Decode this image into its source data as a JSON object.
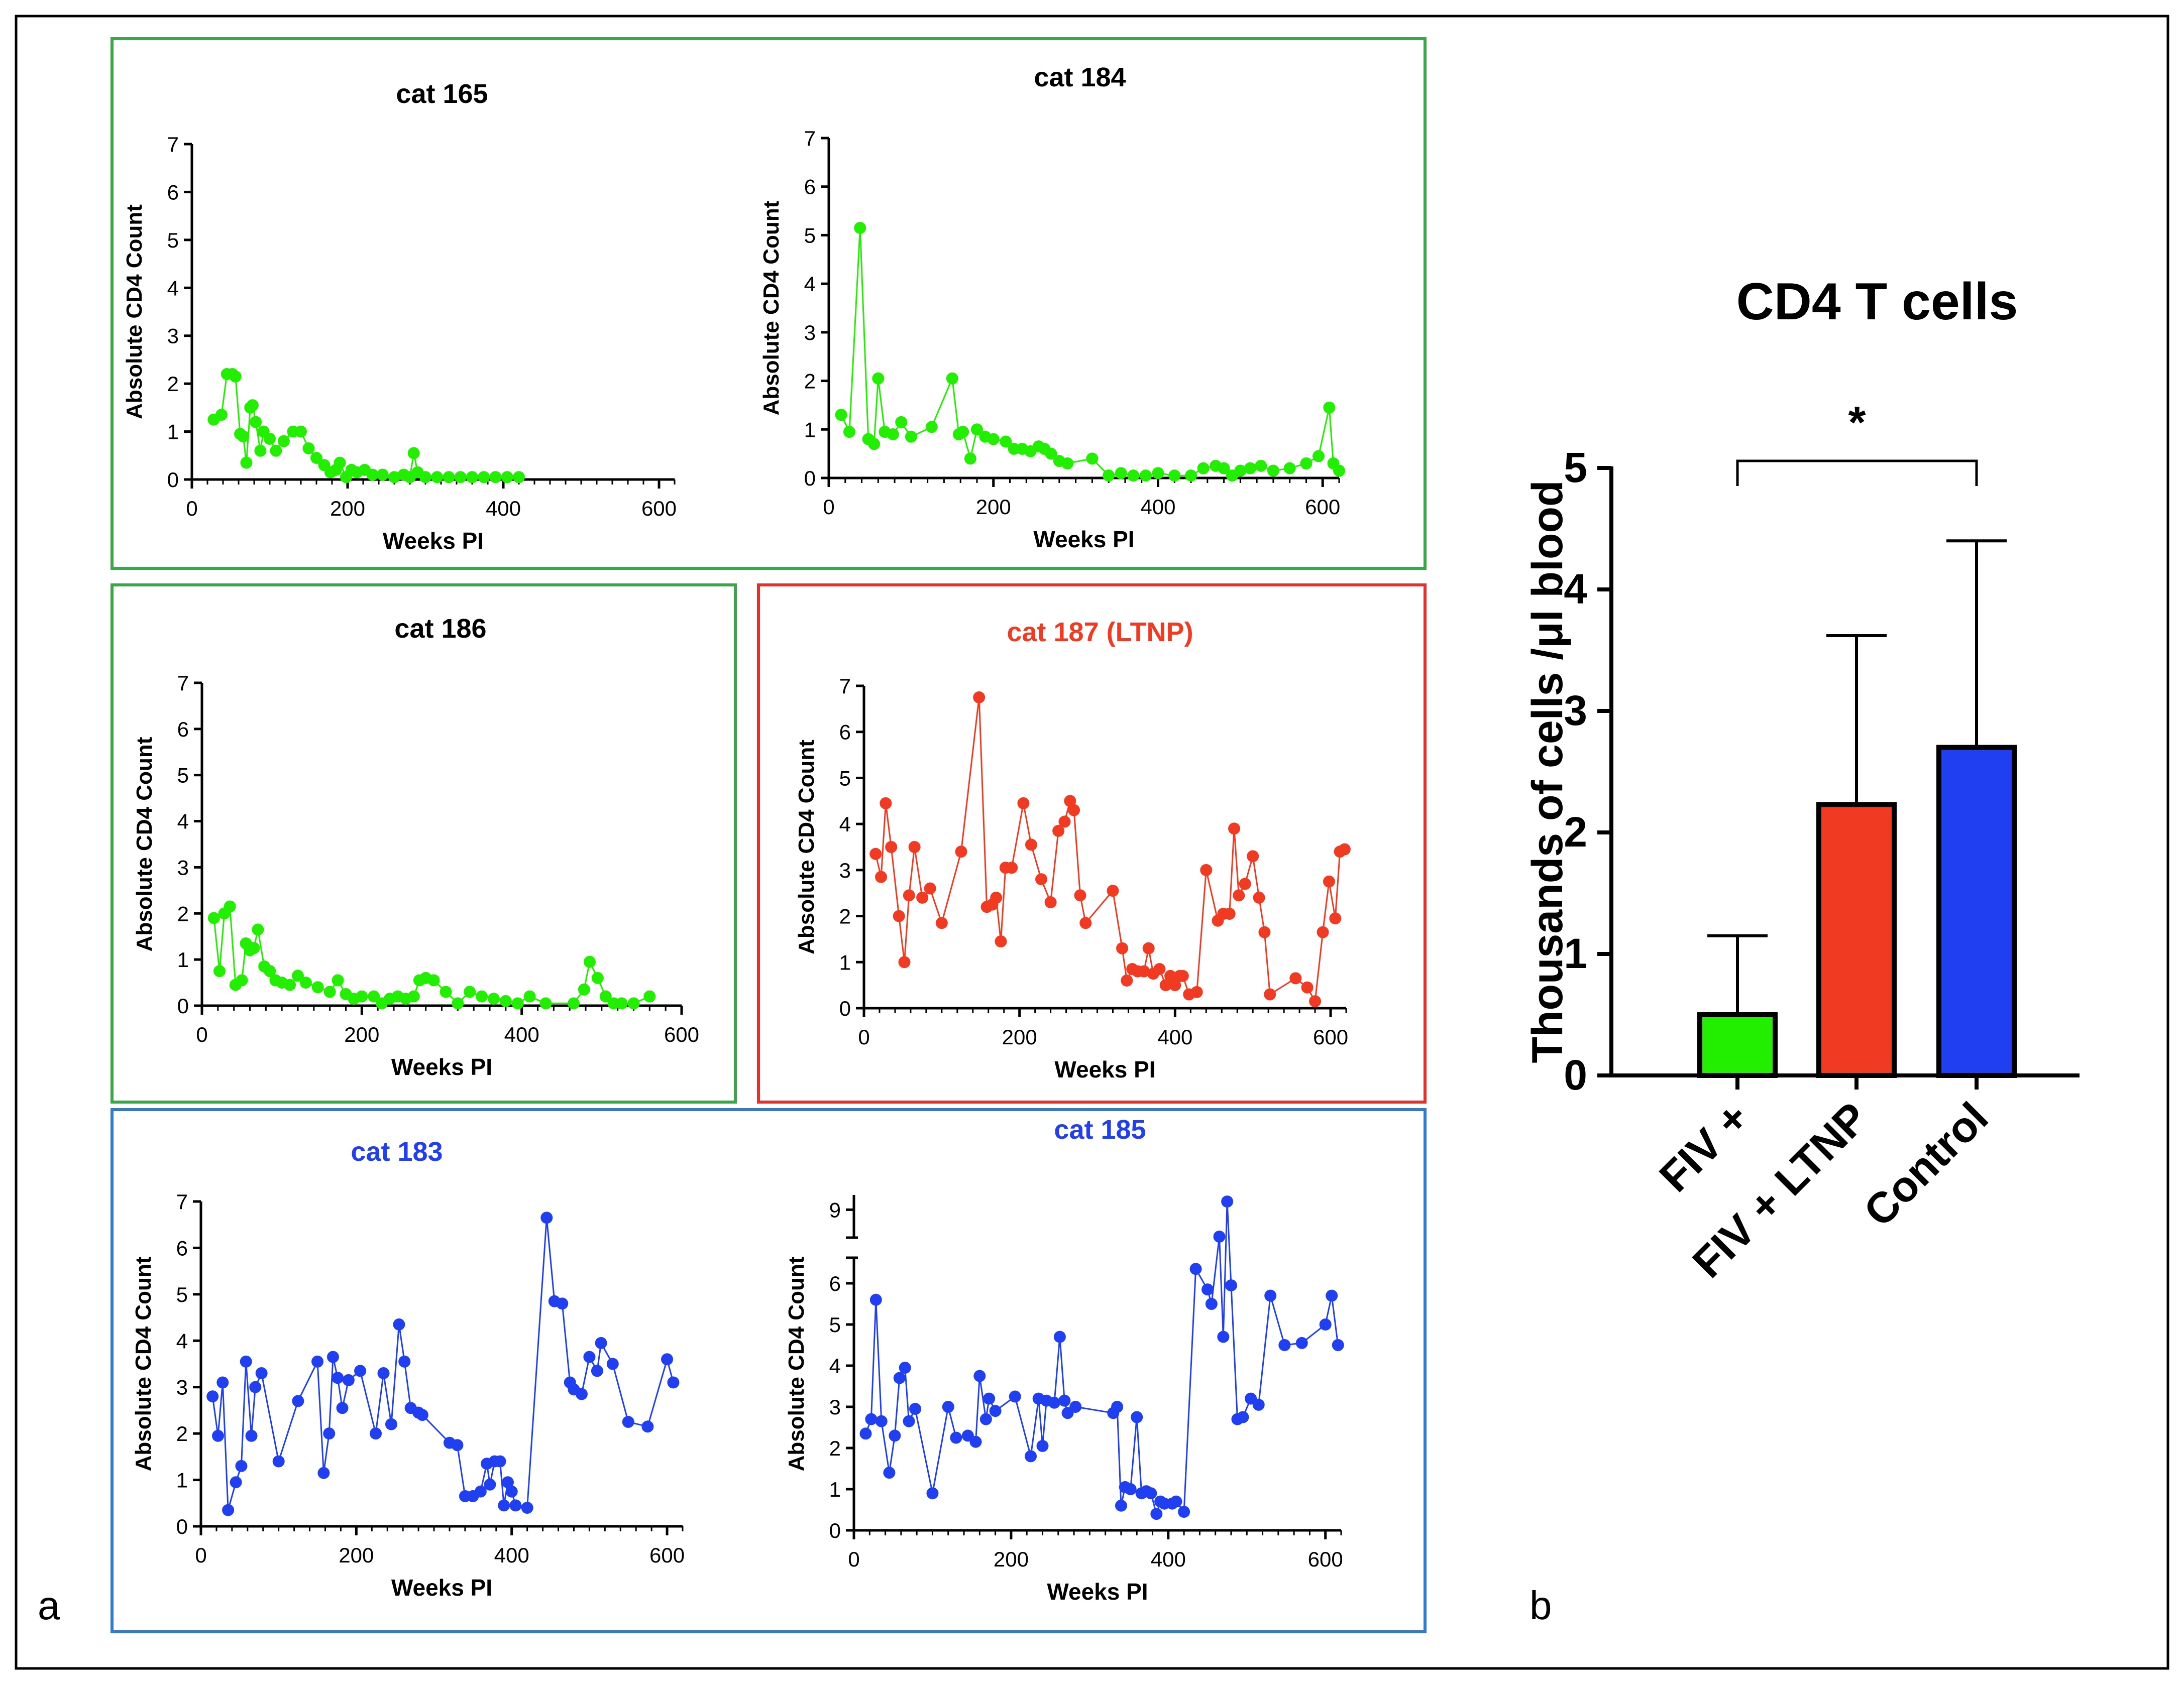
{
  "figure": {
    "panel_a_label": "a",
    "panel_b_label": "b"
  },
  "colors": {
    "fiv_green": "#22ee00",
    "ltnp_red": "#f03a22",
    "control_blue": "#1f3ff0",
    "green_frame": "#3aa64a",
    "red_frame": "#e0332e",
    "blue_frame": "#2f7ccc",
    "axis": "#000000"
  },
  "chart_data": [
    {
      "id": "cat165",
      "type": "line",
      "title": "cat 165",
      "xlabel": "Weeks PI",
      "ylabel": "Absolute CD4 Count",
      "xlim": [
        0,
        620
      ],
      "ylim": [
        0,
        7
      ],
      "xticks": [
        0,
        200,
        400,
        600
      ],
      "yticks": [
        0,
        1,
        2,
        3,
        4,
        5,
        6,
        7
      ],
      "series": [
        {
          "name": "cat 165",
          "color_key": "fiv_green",
          "x": [
            28,
            38,
            45,
            52,
            56,
            62,
            66,
            70,
            75,
            78,
            82,
            88,
            92,
            100,
            108,
            118,
            130,
            140,
            150,
            160,
            170,
            178,
            185,
            190,
            198,
            205,
            212,
            222,
            232,
            245,
            260,
            272,
            280,
            285,
            290,
            300,
            315,
            330,
            345,
            360,
            375,
            390,
            405,
            420
          ],
          "y": [
            1.25,
            1.35,
            2.2,
            2.2,
            2.15,
            0.95,
            0.9,
            0.35,
            1.5,
            1.55,
            1.2,
            0.6,
            1.0,
            0.85,
            0.6,
            0.8,
            1.0,
            1.0,
            0.65,
            0.45,
            0.3,
            0.15,
            0.2,
            0.35,
            0.05,
            0.2,
            0.15,
            0.2,
            0.1,
            0.1,
            0.05,
            0.1,
            0.05,
            0.55,
            0.15,
            0.05,
            0.05,
            0.05,
            0.05,
            0.05,
            0.05,
            0.05,
            0.05,
            0.05
          ]
        }
      ]
    },
    {
      "id": "cat184",
      "type": "line",
      "title": "cat 184",
      "xlabel": "Weeks PI",
      "ylabel": "Absolute CD4 Count",
      "xlim": [
        0,
        620
      ],
      "ylim": [
        0,
        7
      ],
      "xticks": [
        0,
        200,
        400,
        600
      ],
      "yticks": [
        0,
        1,
        2,
        3,
        4,
        5,
        6,
        7
      ],
      "series": [
        {
          "name": "cat 184",
          "color_key": "fiv_green",
          "x": [
            15,
            25,
            38,
            48,
            55,
            60,
            68,
            78,
            88,
            100,
            125,
            150,
            158,
            163,
            172,
            180,
            190,
            200,
            215,
            225,
            235,
            245,
            255,
            262,
            270,
            280,
            290,
            320,
            340,
            355,
            370,
            385,
            400,
            420,
            440,
            455,
            470,
            480,
            490,
            500,
            512,
            525,
            540,
            560,
            580,
            595,
            608,
            613,
            620
          ],
          "y": [
            1.3,
            0.95,
            5.15,
            0.8,
            0.7,
            2.05,
            0.95,
            0.9,
            1.15,
            0.85,
            1.05,
            2.05,
            0.9,
            0.95,
            0.4,
            1.0,
            0.85,
            0.8,
            0.75,
            0.6,
            0.6,
            0.55,
            0.65,
            0.6,
            0.5,
            0.35,
            0.3,
            0.4,
            0.05,
            0.1,
            0.05,
            0.05,
            0.1,
            0.05,
            0.05,
            0.2,
            0.25,
            0.2,
            0.05,
            0.15,
            0.2,
            0.25,
            0.15,
            0.2,
            0.3,
            0.45,
            1.45,
            0.3,
            0.15
          ]
        }
      ]
    },
    {
      "id": "cat186",
      "type": "line",
      "title": "cat 186",
      "xlabel": "Weeks PI",
      "ylabel": "Absolute CD4 Count",
      "xlim": [
        0,
        600
      ],
      "ylim": [
        0,
        7
      ],
      "xticks": [
        0,
        200,
        400,
        600
      ],
      "yticks": [
        0,
        1,
        2,
        3,
        4,
        5,
        6,
        7
      ],
      "series": [
        {
          "name": "cat 186",
          "color_key": "fiv_green",
          "x": [
            15,
            22,
            28,
            35,
            42,
            50,
            55,
            60,
            65,
            70,
            78,
            85,
            92,
            100,
            110,
            120,
            130,
            145,
            160,
            170,
            180,
            190,
            200,
            215,
            225,
            235,
            245,
            255,
            265,
            272,
            280,
            290,
            305,
            320,
            335,
            350,
            365,
            380,
            395,
            410,
            430,
            465,
            478,
            485,
            495,
            505,
            515,
            525,
            540,
            560
          ],
          "y": [
            1.9,
            0.75,
            2.0,
            2.15,
            0.45,
            0.55,
            1.35,
            1.2,
            1.25,
            1.65,
            0.85,
            0.75,
            0.55,
            0.5,
            0.45,
            0.65,
            0.5,
            0.4,
            0.3,
            0.55,
            0.25,
            0.15,
            0.2,
            0.2,
            0.05,
            0.15,
            0.2,
            0.15,
            0.2,
            0.55,
            0.6,
            0.55,
            0.3,
            0.05,
            0.3,
            0.2,
            0.15,
            0.1,
            0.05,
            0.2,
            0.05,
            0.05,
            0.35,
            0.95,
            0.6,
            0.2,
            0.05,
            0.05,
            0.05,
            0.2
          ]
        }
      ]
    },
    {
      "id": "cat187",
      "type": "line",
      "title": "cat 187 (LTNP)",
      "xlabel": "Weeks PI",
      "ylabel": "Absolute CD4 Count",
      "xlim": [
        0,
        620
      ],
      "ylim": [
        0,
        7
      ],
      "xticks": [
        0,
        200,
        400,
        600
      ],
      "yticks": [
        0,
        1,
        2,
        3,
        4,
        5,
        6,
        7
      ],
      "series": [
        {
          "name": "cat 187 (LTNP)",
          "color_key": "ltnp_red",
          "x": [
            15,
            22,
            28,
            35,
            45,
            52,
            58,
            65,
            75,
            85,
            100,
            125,
            148,
            158,
            165,
            170,
            176,
            182,
            190,
            205,
            215,
            228,
            240,
            250,
            258,
            265,
            270,
            278,
            285,
            320,
            332,
            338,
            345,
            352,
            360,
            366,
            372,
            380,
            388,
            394,
            400,
            406,
            410,
            418,
            428,
            440,
            455,
            462,
            470,
            476,
            482,
            490,
            500,
            508,
            515,
            522,
            555,
            570,
            580,
            590,
            598,
            606,
            612,
            618
          ],
          "y": [
            3.35,
            2.85,
            4.45,
            3.5,
            2.0,
            1.0,
            2.45,
            3.5,
            2.4,
            2.6,
            1.85,
            3.4,
            6.75,
            2.2,
            2.25,
            2.4,
            1.45,
            3.05,
            3.05,
            4.45,
            3.55,
            2.8,
            2.3,
            3.85,
            4.05,
            4.5,
            4.3,
            2.45,
            1.85,
            2.55,
            1.3,
            0.6,
            0.85,
            0.8,
            0.8,
            1.3,
            0.75,
            0.85,
            0.5,
            0.7,
            0.5,
            0.7,
            0.7,
            0.3,
            0.35,
            3.0,
            1.9,
            2.05,
            2.05,
            3.9,
            2.45,
            2.7,
            3.3,
            2.4,
            1.65,
            0.3,
            0.65,
            0.45,
            0.15,
            1.65,
            2.75,
            1.95,
            3.4,
            3.45
          ]
        }
      ]
    },
    {
      "id": "cat183",
      "type": "line",
      "title": "cat 183",
      "xlabel": "Weeks PI",
      "ylabel": "Absolute CD4 Count",
      "xlim": [
        0,
        620
      ],
      "ylim": [
        0,
        7
      ],
      "xticks": [
        0,
        200,
        400,
        600
      ],
      "yticks": [
        0,
        1,
        2,
        3,
        4,
        5,
        6,
        7
      ],
      "series": [
        {
          "name": "cat 183",
          "color_key": "control_blue",
          "x": [
            15,
            22,
            28,
            35,
            45,
            52,
            58,
            65,
            70,
            78,
            100,
            125,
            150,
            158,
            165,
            170,
            176,
            182,
            190,
            205,
            225,
            235,
            245,
            255,
            262,
            270,
            280,
            285,
            320,
            330,
            340,
            350,
            360,
            368,
            372,
            378,
            385,
            390,
            395,
            400,
            405,
            420,
            445,
            455,
            465,
            475,
            480,
            490,
            500,
            510,
            515,
            530,
            550,
            575,
            600,
            608
          ],
          "y": [
            2.8,
            1.95,
            3.1,
            0.35,
            0.95,
            1.3,
            3.55,
            1.95,
            3.0,
            3.3,
            1.4,
            2.7,
            3.55,
            1.15,
            2.0,
            3.65,
            3.2,
            2.55,
            3.15,
            3.35,
            2.0,
            3.3,
            2.2,
            4.35,
            3.55,
            2.55,
            2.45,
            2.4,
            1.8,
            1.75,
            0.65,
            0.65,
            0.75,
            1.35,
            0.9,
            1.4,
            1.4,
            0.45,
            0.95,
            0.75,
            0.45,
            0.4,
            6.65,
            4.85,
            4.8,
            3.1,
            2.95,
            2.85,
            3.65,
            3.35,
            3.95,
            3.5,
            2.25,
            2.15,
            3.6,
            3.1
          ]
        }
      ]
    },
    {
      "id": "cat185",
      "type": "line",
      "title": "cat 185",
      "xlabel": "Weeks PI",
      "ylabel": "Absolute CD4 Count",
      "xlim": [
        0,
        620
      ],
      "ylim": [
        0,
        9.3
      ],
      "axis_break": [
        6.5,
        8.5
      ],
      "xticks": [
        0,
        200,
        400,
        600
      ],
      "yticks": [
        0,
        1,
        2,
        3,
        4,
        5,
        6,
        9
      ],
      "series": [
        {
          "name": "cat 185",
          "color_key": "control_blue",
          "x": [
            15,
            22,
            28,
            35,
            45,
            52,
            58,
            65,
            70,
            78,
            100,
            120,
            130,
            145,
            155,
            160,
            168,
            172,
            180,
            205,
            225,
            235,
            240,
            245,
            255,
            262,
            268,
            272,
            282,
            330,
            335,
            340,
            345,
            352,
            360,
            366,
            372,
            378,
            385,
            390,
            395,
            405,
            410,
            420,
            435,
            450,
            455,
            465,
            470,
            475,
            480,
            488,
            495,
            505,
            515,
            530,
            548,
            570,
            600,
            608,
            616
          ],
          "y": [
            2.35,
            2.7,
            5.6,
            2.65,
            1.4,
            2.3,
            3.7,
            3.95,
            2.65,
            2.95,
            0.9,
            3.0,
            2.25,
            2.3,
            2.15,
            3.75,
            2.7,
            3.2,
            2.9,
            3.25,
            1.8,
            3.2,
            2.05,
            3.15,
            3.1,
            4.7,
            3.15,
            2.85,
            3.0,
            2.85,
            3.0,
            0.6,
            1.05,
            1.0,
            2.75,
            0.9,
            0.95,
            0.9,
            0.4,
            0.7,
            0.65,
            0.65,
            0.7,
            0.45,
            6.35,
            5.85,
            5.5,
            8.1,
            4.7,
            9.2,
            5.95,
            2.7,
            2.75,
            3.2,
            3.05,
            5.7,
            4.5,
            4.55,
            5.0,
            5.7,
            4.5
          ]
        }
      ]
    },
    {
      "id": "cd4_bar",
      "type": "bar",
      "title": "CD4 T cells",
      "xlabel": "",
      "ylabel": "Thousands of cells /μl blood",
      "ylim": [
        0,
        5
      ],
      "yticks": [
        0,
        1,
        2,
        3,
        4,
        5
      ],
      "categories": [
        "FIV +",
        "FIV + LTNP",
        "Control"
      ],
      "values": [
        0.5,
        2.23,
        2.7
      ],
      "error_upper": [
        1.15,
        3.62,
        4.4
      ],
      "bar_color_keys": [
        "fiv_green",
        "ltnp_red",
        "control_blue"
      ],
      "significance": {
        "from": "FIV +",
        "to": "Control",
        "label": "*"
      }
    }
  ]
}
